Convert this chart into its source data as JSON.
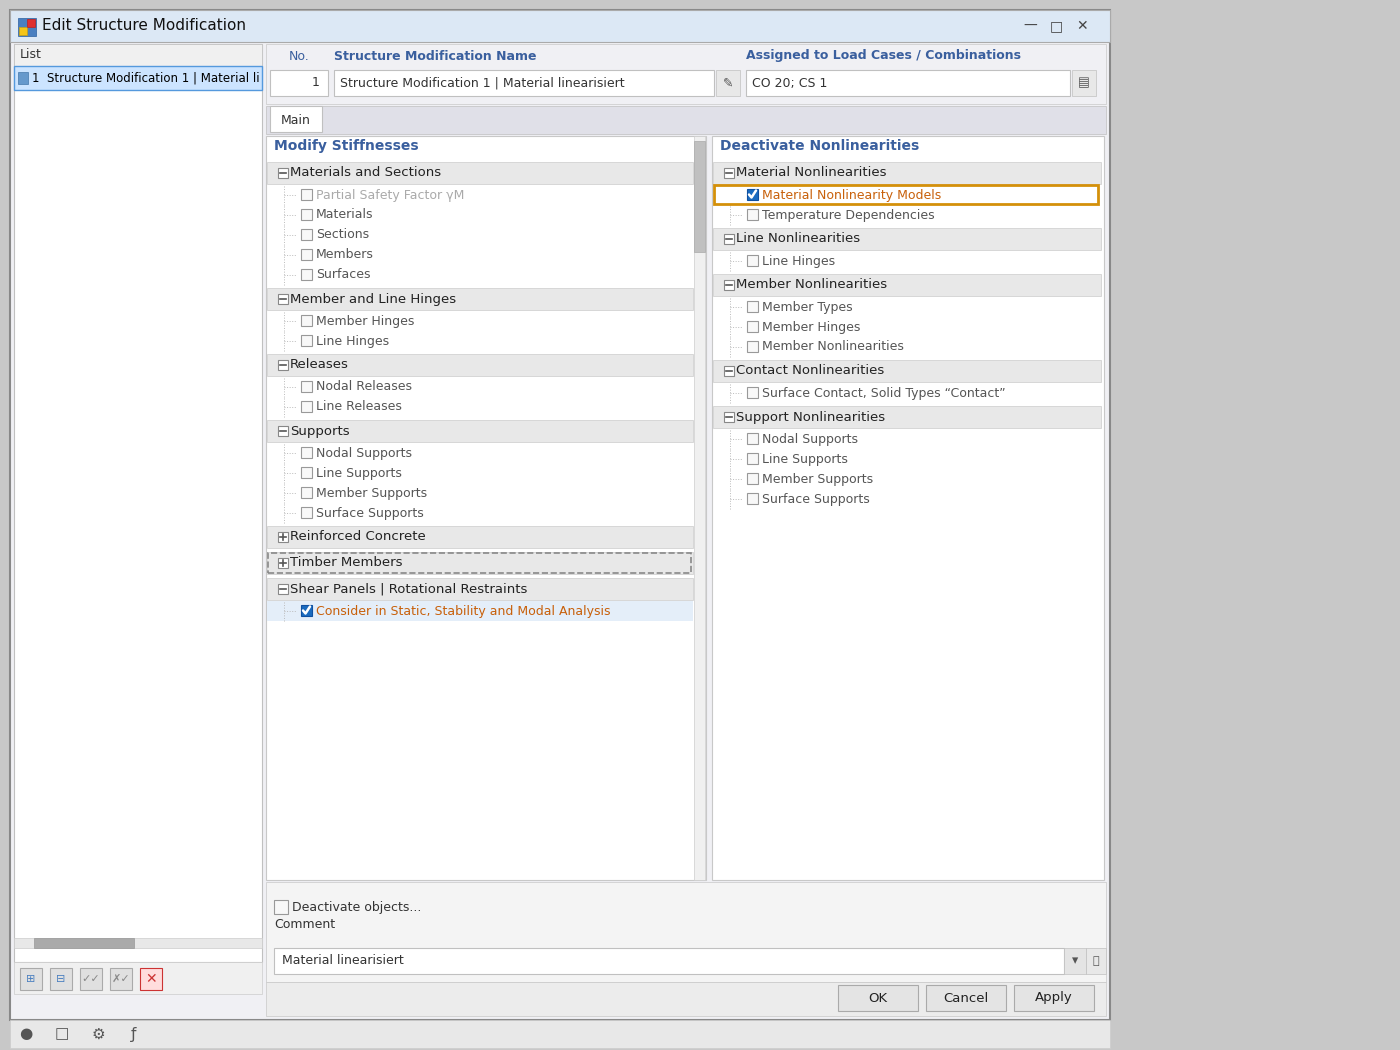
{
  "title": "Edit Structure Modification",
  "window_bg": "#f0f0f0",
  "titlebar_bg": "#dce6f0",
  "outer_bg": "#c8c8c8",
  "modify_stiffnesses": {
    "title": "Modify Stiffnesses",
    "groups": [
      {
        "name": "Materials and Sections",
        "collapsed": false,
        "items": [
          {
            "text": "Partial Safety Factor γM",
            "checked": false,
            "disabled": true
          },
          {
            "text": "Materials",
            "checked": false,
            "disabled": false
          },
          {
            "text": "Sections",
            "checked": false,
            "disabled": false
          },
          {
            "text": "Members",
            "checked": false,
            "disabled": false
          },
          {
            "text": "Surfaces",
            "checked": false,
            "disabled": false
          }
        ]
      },
      {
        "name": "Member and Line Hinges",
        "collapsed": false,
        "items": [
          {
            "text": "Member Hinges",
            "checked": false,
            "disabled": false
          },
          {
            "text": "Line Hinges",
            "checked": false,
            "disabled": false
          }
        ]
      },
      {
        "name": "Releases",
        "collapsed": false,
        "items": [
          {
            "text": "Nodal Releases",
            "checked": false,
            "disabled": false
          },
          {
            "text": "Line Releases",
            "checked": false,
            "disabled": false
          }
        ]
      },
      {
        "name": "Supports",
        "collapsed": false,
        "items": [
          {
            "text": "Nodal Supports",
            "checked": false,
            "disabled": false
          },
          {
            "text": "Line Supports",
            "checked": false,
            "disabled": false
          },
          {
            "text": "Member Supports",
            "checked": false,
            "disabled": false
          },
          {
            "text": "Surface Supports",
            "checked": false,
            "disabled": false
          }
        ]
      },
      {
        "name": "Reinforced Concrete",
        "collapsed": true,
        "items": []
      },
      {
        "name": "Timber Members",
        "collapsed": true,
        "items": [],
        "highlighted": true
      },
      {
        "name": "Shear Panels | Rotational Restraints",
        "collapsed": false,
        "items": [
          {
            "text": "Consider in Static, Stability and Modal Analysis",
            "checked": true,
            "disabled": false
          }
        ]
      }
    ]
  },
  "deactivate_nonlinearities": {
    "title": "Deactivate Nonlinearities",
    "groups": [
      {
        "name": "Material Nonlinearities",
        "collapsed": false,
        "items": [
          {
            "text": "Material Nonlinearity Models",
            "checked": true,
            "highlighted": true,
            "disabled": false
          },
          {
            "text": "Temperature Dependencies",
            "checked": false,
            "disabled": false
          }
        ]
      },
      {
        "name": "Line Nonlinearities",
        "collapsed": false,
        "items": [
          {
            "text": "Line Hinges",
            "checked": false,
            "disabled": false
          }
        ]
      },
      {
        "name": "Member Nonlinearities",
        "collapsed": false,
        "items": [
          {
            "text": "Member Types",
            "checked": false,
            "disabled": false
          },
          {
            "text": "Member Hinges",
            "checked": false,
            "disabled": false
          },
          {
            "text": "Member Nonlinearities",
            "checked": false,
            "disabled": false
          }
        ]
      },
      {
        "name": "Contact Nonlinearities",
        "collapsed": false,
        "items": [
          {
            "text": "Surface Contact, Solid Types “Contact”",
            "checked": false,
            "disabled": false
          }
        ]
      },
      {
        "name": "Support Nonlinearities",
        "collapsed": false,
        "items": [
          {
            "text": "Nodal Supports",
            "checked": false,
            "disabled": false
          },
          {
            "text": "Line Supports",
            "checked": false,
            "disabled": false
          },
          {
            "text": "Member Supports",
            "checked": false,
            "disabled": false
          },
          {
            "text": "Surface Supports",
            "checked": false,
            "disabled": false
          }
        ]
      }
    ]
  },
  "list_label": "List",
  "list_item": "1  Structure Modification 1 | Material li",
  "no_label": "No.",
  "no_value": "1",
  "name_label": "Structure Modification Name",
  "name_value": "Structure Modification 1 | Material linearisiert",
  "assigned_label": "Assigned to Load Cases / Combinations",
  "assigned_value": "CO 20; CS 1",
  "tab_label": "Main",
  "deactivate_text": "Deactivate objects...",
  "comment_label": "Comment",
  "comment_value": "Material linearisiert",
  "buttons": [
    "OK",
    "Cancel",
    "Apply"
  ],
  "blue_label": "#3a5f9e",
  "orange_text": "#c8600a",
  "dark_text": "#333333",
  "gray_text": "#aaaaaa",
  "checkbox_blue": "#1a6bbf",
  "orange_border_color": "#d4900a",
  "group_header_bg": "#e8e8e8",
  "item_bg": "#f8f8f8",
  "white": "#ffffff",
  "panel_border": "#c0c0c0"
}
